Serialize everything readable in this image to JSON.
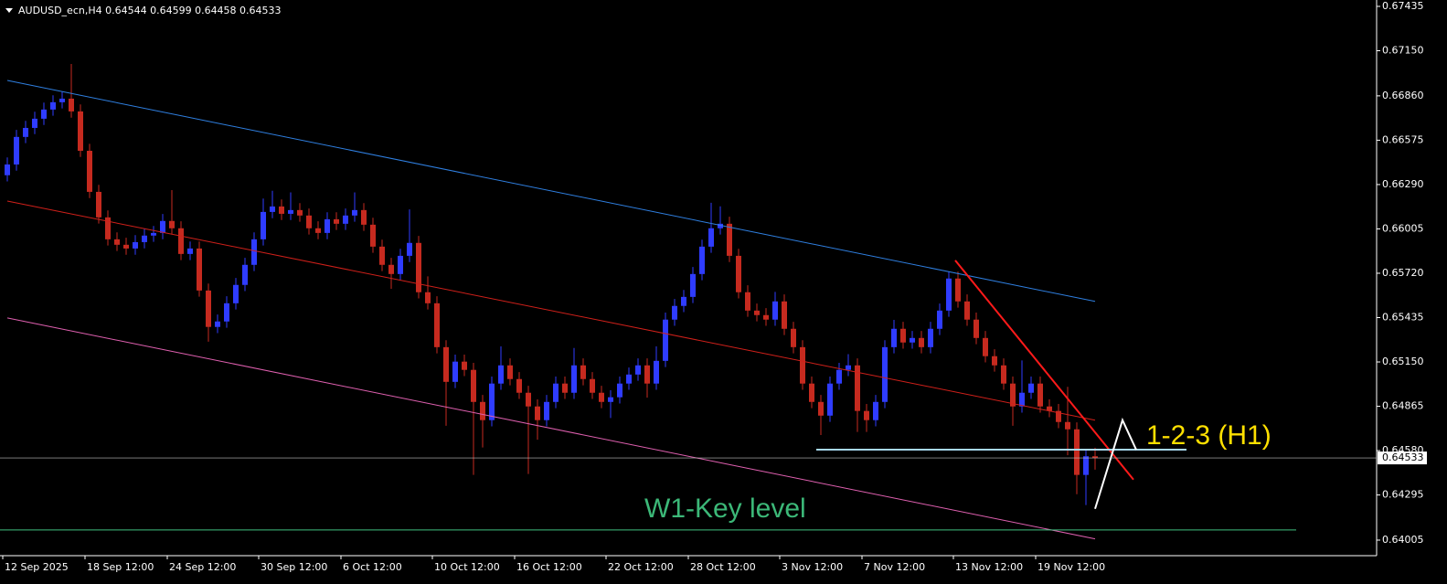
{
  "chart_data": {
    "type": "candlestick",
    "title": "AUDUSD_ecn,H4  0.64544 0.64599 0.64458 0.64533",
    "up_color": "#2f3cff",
    "down_color": "#c62a1f",
    "open": [
      0.6635,
      0.66419,
      0.66596,
      0.66654,
      0.66713,
      0.66772,
      0.66819,
      0.66842,
      0.6676,
      0.66507,
      0.66243,
      0.66079,
      0.65938,
      0.65903,
      0.65879,
      0.6592,
      0.65962,
      0.65979,
      0.66056,
      0.66009,
      0.65844,
      0.65879,
      0.65609,
      0.65375,
      0.6541,
      0.65527,
      0.65645,
      0.65774,
      0.65938,
      0.66114,
      0.66149,
      0.66102,
      0.66126,
      0.66091,
      0.66009,
      0.65979,
      0.66067,
      0.66038,
      0.66091,
      0.66126,
      0.66032,
      0.65891,
      0.65774,
      0.65715,
      0.65832,
      0.65915,
      0.65598,
      0.65527,
      0.65245,
      0.65022,
      0.65152,
      0.65099,
      0.64893,
      0.64776,
      0.65011,
      0.65128,
      0.6504,
      0.64952,
      0.64864,
      0.64776,
      0.64893,
      0.65011,
      0.64952,
      0.65128,
      0.6504,
      0.64952,
      0.64893,
      0.64923,
      0.65011,
      0.65069,
      0.65128,
      0.65011,
      0.65157,
      0.65422,
      0.6551,
      0.65568,
      0.65715,
      0.65891,
      0.66009,
      0.66038,
      0.65832,
      0.65598,
      0.6548,
      0.65451,
      0.65422,
      0.65539,
      0.65363,
      0.65245,
      0.65011,
      0.64893,
      0.64805,
      0.65011,
      0.65099,
      0.65128,
      0.64835,
      0.64776,
      0.64893,
      0.65245,
      0.65363,
      0.65275,
      0.65304,
      0.65245,
      0.65363,
      0.6548,
      0.65686,
      0.65539,
      0.65422,
      0.65304,
      0.65187,
      0.65128,
      0.65011,
      0.64864,
      0.64952,
      0.65011,
      0.64864,
      0.64835,
      0.64764,
      0.64717,
      0.64424,
      0.64544
    ],
    "high": [
      0.66464,
      0.66641,
      0.66699,
      0.66758,
      0.66817,
      0.66864,
      0.66887,
      0.67065,
      0.66805,
      0.66552,
      0.66288,
      0.66124,
      0.65983,
      0.65948,
      0.65965,
      0.66007,
      0.66024,
      0.66101,
      0.66254,
      0.66054,
      0.65924,
      0.65924,
      0.65654,
      0.65455,
      0.65572,
      0.6569,
      0.65819,
      0.65983,
      0.662,
      0.6625,
      0.66194,
      0.6624,
      0.66171,
      0.66136,
      0.66054,
      0.66112,
      0.66112,
      0.66136,
      0.6624,
      0.66171,
      0.66077,
      0.65936,
      0.65819,
      0.65877,
      0.6613,
      0.6596,
      0.657,
      0.65572,
      0.6529,
      0.65197,
      0.65197,
      0.65144,
      0.64938,
      0.65056,
      0.6525,
      0.65173,
      0.65085,
      0.64997,
      0.64909,
      0.64938,
      0.65056,
      0.65056,
      0.6524,
      0.65173,
      0.65085,
      0.64997,
      0.64968,
      0.65056,
      0.65114,
      0.65173,
      0.65173,
      0.6525,
      0.65467,
      0.65555,
      0.65613,
      0.6576,
      0.65936,
      0.66173,
      0.6615,
      0.66083,
      0.65877,
      0.65643,
      0.65525,
      0.65496,
      0.656,
      0.65584,
      0.65408,
      0.6529,
      0.65056,
      0.64938,
      0.65056,
      0.65144,
      0.652,
      0.65173,
      0.6488,
      0.64938,
      0.6529,
      0.6542,
      0.65408,
      0.65349,
      0.65349,
      0.65408,
      0.65525,
      0.6573,
      0.65731,
      0.65584,
      0.65467,
      0.65349,
      0.65232,
      0.65173,
      0.65056,
      0.6516,
      0.65056,
      0.65056,
      0.64909,
      0.6488,
      0.6499,
      0.64762,
      0.64589,
      0.64599
    ],
    "low": [
      0.6631,
      0.66379,
      0.66556,
      0.66614,
      0.66673,
      0.66732,
      0.66779,
      0.6672,
      0.66467,
      0.66203,
      0.66039,
      0.65898,
      0.65863,
      0.65839,
      0.65839,
      0.6588,
      0.65922,
      0.65939,
      0.65969,
      0.65804,
      0.65804,
      0.65569,
      0.6528,
      0.65335,
      0.6537,
      0.65487,
      0.65605,
      0.65734,
      0.65898,
      0.66074,
      0.66062,
      0.66062,
      0.66051,
      0.65969,
      0.65939,
      0.65939,
      0.65998,
      0.65998,
      0.66051,
      0.65992,
      0.65851,
      0.65734,
      0.6562,
      0.65675,
      0.65792,
      0.65558,
      0.65487,
      0.65205,
      0.6474,
      0.64982,
      0.65059,
      0.64424,
      0.646,
      0.64736,
      0.64971,
      0.65,
      0.64912,
      0.6443,
      0.6465,
      0.64736,
      0.64853,
      0.64912,
      0.64912,
      0.65,
      0.64912,
      0.64853,
      0.6479,
      0.64883,
      0.64971,
      0.65029,
      0.6492,
      0.64971,
      0.65117,
      0.65382,
      0.6547,
      0.65528,
      0.65675,
      0.65851,
      0.65969,
      0.65792,
      0.65558,
      0.6544,
      0.65411,
      0.65382,
      0.65382,
      0.65323,
      0.65205,
      0.64971,
      0.64853,
      0.6468,
      0.64765,
      0.64971,
      0.65059,
      0.647,
      0.647,
      0.64736,
      0.64853,
      0.65205,
      0.65235,
      0.65235,
      0.65205,
      0.65205,
      0.65323,
      0.6544,
      0.65499,
      0.65382,
      0.65264,
      0.65147,
      0.65088,
      0.64971,
      0.6474,
      0.64824,
      0.64912,
      0.64824,
      0.64795,
      0.64724,
      0.6455,
      0.643,
      0.6423,
      0.64458
    ],
    "close": [
      0.66419,
      0.66596,
      0.66654,
      0.66713,
      0.66772,
      0.66819,
      0.66842,
      0.6676,
      0.66507,
      0.66243,
      0.66079,
      0.65938,
      0.65903,
      0.65879,
      0.6592,
      0.65962,
      0.65979,
      0.66056,
      0.66009,
      0.65844,
      0.65879,
      0.65609,
      0.65375,
      0.6541,
      0.65527,
      0.65645,
      0.65774,
      0.65938,
      0.66114,
      0.66149,
      0.66102,
      0.66126,
      0.66091,
      0.66009,
      0.65979,
      0.66067,
      0.66038,
      0.66091,
      0.66126,
      0.66032,
      0.65891,
      0.65774,
      0.65715,
      0.65832,
      0.65915,
      0.65598,
      0.65527,
      0.65245,
      0.65022,
      0.65152,
      0.65099,
      0.64893,
      0.64776,
      0.65011,
      0.65128,
      0.6504,
      0.64952,
      0.64864,
      0.64776,
      0.64893,
      0.65011,
      0.64952,
      0.65128,
      0.6504,
      0.64952,
      0.64893,
      0.64923,
      0.65011,
      0.65069,
      0.65128,
      0.65011,
      0.65157,
      0.65422,
      0.6551,
      0.65568,
      0.65715,
      0.65891,
      0.66009,
      0.66038,
      0.65832,
      0.65598,
      0.6548,
      0.65451,
      0.65422,
      0.65539,
      0.65363,
      0.65245,
      0.65011,
      0.64893,
      0.64805,
      0.65011,
      0.65099,
      0.65128,
      0.64835,
      0.64776,
      0.64893,
      0.65245,
      0.65363,
      0.65275,
      0.65304,
      0.65245,
      0.65363,
      0.6548,
      0.65686,
      0.65539,
      0.65422,
      0.65304,
      0.65187,
      0.65128,
      0.65011,
      0.64864,
      0.64952,
      0.65011,
      0.64864,
      0.64835,
      0.64764,
      0.64717,
      0.64424,
      0.64544,
      0.64533
    ],
    "xticks": [
      {
        "value": 0,
        "label": "12 Sep 2025"
      },
      {
        "value": 9,
        "label": "18 Sep 12:00"
      },
      {
        "value": 18,
        "label": "24 Sep 12:00"
      },
      {
        "value": 28,
        "label": "30 Sep 12:00"
      },
      {
        "value": 37,
        "label": "6 Oct 12:00"
      },
      {
        "value": 47,
        "label": "10 Oct 12:00"
      },
      {
        "value": 56,
        "label": "16 Oct 12:00"
      },
      {
        "value": 66,
        "label": "22 Oct 12:00"
      },
      {
        "value": 75,
        "label": "28 Oct 12:00"
      },
      {
        "value": 85,
        "label": "3 Nov 12:00"
      },
      {
        "value": 94,
        "label": "7 Nov 12:00"
      },
      {
        "value": 104,
        "label": "13 Nov 12:00"
      },
      {
        "value": 113,
        "label": "19 Nov 12:00"
      }
    ],
    "ylim": [
      0.63905,
      0.67476
    ],
    "yticks": [
      0.67435,
      {
        "value": 0.6715,
        "label": "0.67150"
      },
      {
        "value": 0.6686,
        "label": "0.66860"
      },
      0.66575,
      {
        "value": 0.6629,
        "label": "0.66290"
      },
      0.66005,
      {
        "value": 0.6572,
        "label": "0.65720"
      },
      0.65435,
      {
        "value": 0.6515,
        "label": "0.65150"
      },
      0.64865,
      {
        "value": 0.6458,
        "label": "0.64580"
      },
      0.64295,
      0.64005
    ],
    "current_price": {
      "value": 0.64533,
      "label": "0.64533",
      "color": "#c0c0c0"
    },
    "lines": [
      {
        "color": "#2f7fe0",
        "points": [
          [
            0,
            0.66959
          ],
          [
            119,
            0.65539
          ]
        ]
      },
      {
        "color": "#d0201a",
        "points": [
          [
            0,
            0.66184
          ],
          [
            119,
            0.64776
          ]
        ]
      },
      {
        "color": "#e060b0",
        "points": [
          [
            0,
            0.65433
          ],
          [
            119,
            0.64013
          ]
        ]
      },
      {
        "color": "#ff1a1a",
        "width": 2,
        "points": [
          [
            103.7,
            0.65803
          ],
          [
            123.2,
            0.64394
          ]
        ]
      },
      {
        "color": "#a8d8f0",
        "width": 2,
        "points": [
          [
            88.5,
            0.64586
          ],
          [
            129,
            0.64586
          ]
        ]
      },
      {
        "color": "#ffffff",
        "width": 2,
        "points": [
          [
            119,
            0.64206
          ],
          [
            122,
            0.64776
          ],
          [
            123.5,
            0.64586
          ]
        ]
      },
      {
        "color": "#40c080",
        "points": [
          [
            -0.8,
            0.6407
          ],
          [
            141,
            0.6407
          ]
        ]
      }
    ],
    "annotations": [
      {
        "text": "1-2-3 (H1)",
        "color": "#ffe000"
      },
      {
        "text": "W1-Key level",
        "color": "#3cb878"
      }
    ]
  }
}
